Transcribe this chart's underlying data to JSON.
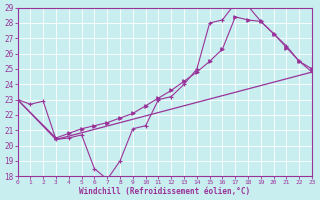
{
  "xlabel": "Windchill (Refroidissement éolien,°C)",
  "xlim": [
    0,
    23
  ],
  "ylim": [
    18,
    29
  ],
  "yticks": [
    18,
    19,
    20,
    21,
    22,
    23,
    24,
    25,
    26,
    27,
    28,
    29
  ],
  "xticks": [
    0,
    1,
    2,
    3,
    4,
    5,
    6,
    7,
    8,
    9,
    10,
    11,
    12,
    13,
    14,
    15,
    16,
    17,
    18,
    19,
    20,
    21,
    22,
    23
  ],
  "line_color": "#993399",
  "bg_color": "#c8eef0",
  "grid_color": "#ffffff",
  "line1_x": [
    0,
    1,
    2,
    3,
    4,
    5,
    6,
    7,
    8,
    9,
    10,
    11,
    12,
    13,
    14,
    15,
    16,
    17,
    18,
    19,
    20,
    21,
    22,
    23
  ],
  "line1_y": [
    23.0,
    22.7,
    22.9,
    20.4,
    20.5,
    20.7,
    18.5,
    17.8,
    19.0,
    21.1,
    21.3,
    23.0,
    23.2,
    24.0,
    25.0,
    28.0,
    28.2,
    29.3,
    29.1,
    28.1,
    27.3,
    26.5,
    25.5,
    24.8
  ],
  "line2_x": [
    0,
    3,
    4,
    5,
    6,
    7,
    8,
    9,
    10,
    11,
    12,
    13,
    14,
    15,
    16,
    17,
    18,
    19,
    20,
    21,
    22,
    23
  ],
  "line2_y": [
    23.0,
    20.5,
    20.8,
    21.1,
    21.3,
    21.5,
    21.8,
    22.1,
    22.6,
    23.1,
    23.6,
    24.2,
    24.8,
    25.5,
    26.3,
    28.4,
    28.2,
    28.1,
    27.3,
    26.4,
    25.5,
    25.0
  ],
  "line3_x": [
    0,
    3,
    23
  ],
  "line3_y": [
    23.0,
    20.4,
    24.8
  ]
}
